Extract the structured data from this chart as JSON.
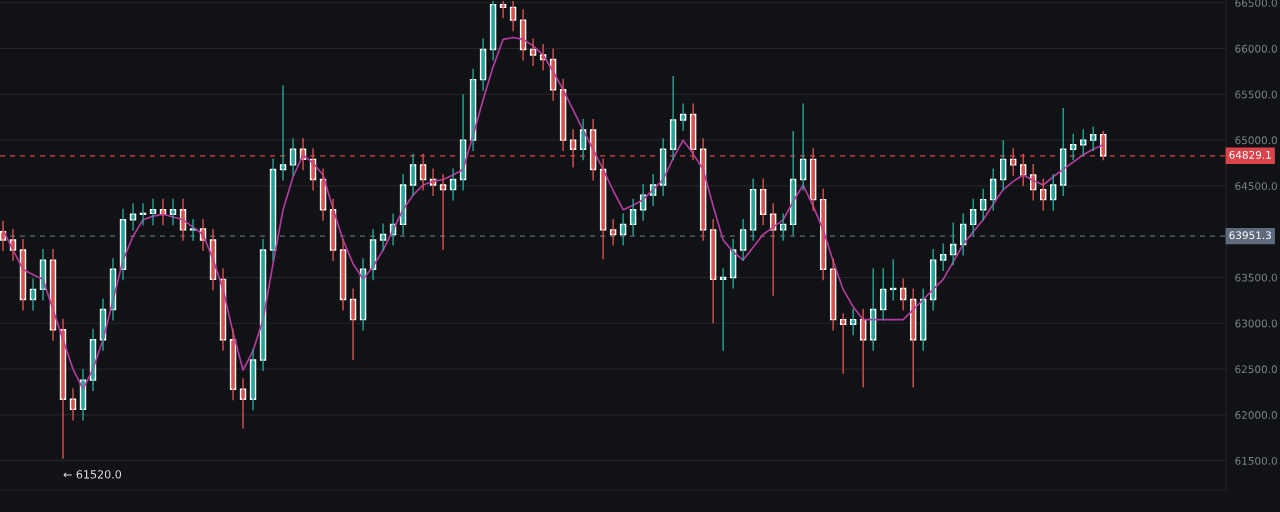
{
  "chart_data": {
    "type": "candlestick",
    "categories": [
      null,
      null,
      null,
      null,
      null,
      null,
      null,
      null,
      null,
      null,
      null,
      null,
      null,
      null,
      null,
      null,
      null,
      null,
      null,
      null,
      null,
      null,
      null,
      null,
      null,
      null,
      null,
      null,
      null,
      null,
      null,
      null,
      null,
      null,
      null,
      null,
      null,
      null,
      null,
      null,
      null,
      null,
      null,
      null,
      null,
      null,
      null,
      null,
      null,
      null,
      null,
      null,
      null,
      null,
      null,
      null,
      null,
      null,
      null,
      null,
      null,
      null,
      null,
      null,
      null,
      null,
      null,
      null,
      null,
      null,
      null,
      null,
      null,
      null,
      null,
      null,
      null,
      null,
      null,
      null,
      null,
      null,
      null,
      null,
      null,
      null,
      null,
      null,
      null,
      null,
      null,
      null,
      null,
      null,
      null,
      null,
      null,
      null,
      null,
      null,
      null,
      null,
      null,
      null,
      null,
      null,
      null,
      null,
      null,
      null,
      null
    ],
    "ohlc": [
      [
        64000,
        64120,
        63790,
        63910
      ],
      [
        63910,
        64030,
        63680,
        63800
      ],
      [
        63800,
        63920,
        63140,
        63260
      ],
      [
        63260,
        63490,
        63140,
        63370
      ],
      [
        63370,
        63810,
        63250,
        63690
      ],
      [
        63690,
        63810,
        62810,
        62930
      ],
      [
        62930,
        63050,
        61520,
        62170
      ],
      [
        62170,
        62290,
        61940,
        62060
      ],
      [
        62060,
        62500,
        61940,
        62380
      ],
      [
        62380,
        62940,
        62260,
        62820
      ],
      [
        62820,
        63270,
        62700,
        63150
      ],
      [
        63150,
        63710,
        63030,
        63590
      ],
      [
        63590,
        64250,
        63470,
        64130
      ],
      [
        64130,
        64310,
        64010,
        64190
      ],
      [
        64190,
        64310,
        64070,
        64200
      ],
      [
        64200,
        64360,
        64070,
        64240
      ],
      [
        64240,
        64360,
        64070,
        64190
      ],
      [
        64190,
        64360,
        64070,
        64240
      ],
      [
        64240,
        64360,
        63900,
        64020
      ],
      [
        64020,
        64140,
        63900,
        64030
      ],
      [
        64030,
        64140,
        63790,
        63910
      ],
      [
        63910,
        64030,
        63360,
        63480
      ],
      [
        63480,
        63600,
        62700,
        62820
      ],
      [
        62820,
        62940,
        62160,
        62280
      ],
      [
        62280,
        62400,
        61850,
        62170
      ],
      [
        62170,
        62720,
        62050,
        62600
      ],
      [
        62600,
        63920,
        62480,
        63800
      ],
      [
        63800,
        64800,
        63680,
        64680
      ],
      [
        64680,
        65600,
        64560,
        64730
      ],
      [
        64730,
        65020,
        64610,
        64900
      ],
      [
        64900,
        65020,
        64670,
        64790
      ],
      [
        64790,
        64910,
        64450,
        64570
      ],
      [
        64570,
        64690,
        64120,
        64240
      ],
      [
        64240,
        64360,
        63680,
        63800
      ],
      [
        63800,
        63920,
        63140,
        63260
      ],
      [
        63260,
        63380,
        62600,
        63040
      ],
      [
        63040,
        63710,
        62920,
        63590
      ],
      [
        63590,
        64030,
        63470,
        63910
      ],
      [
        63910,
        64090,
        63790,
        63970
      ],
      [
        63970,
        64200,
        63850,
        64080
      ],
      [
        64080,
        64630,
        63960,
        64510
      ],
      [
        64510,
        64850,
        64390,
        64730
      ],
      [
        64730,
        64850,
        64450,
        64570
      ],
      [
        64570,
        64690,
        64390,
        64510
      ],
      [
        64510,
        64630,
        63800,
        64460
      ],
      [
        64460,
        64690,
        64340,
        64570
      ],
      [
        64570,
        65500,
        64450,
        65000
      ],
      [
        65000,
        65780,
        64880,
        65660
      ],
      [
        65660,
        66110,
        65540,
        65990
      ],
      [
        65990,
        66520,
        65870,
        66480
      ],
      [
        66480,
        66520,
        66330,
        66450
      ],
      [
        66450,
        66520,
        66190,
        66310
      ],
      [
        66310,
        66430,
        65870,
        65990
      ],
      [
        65990,
        66110,
        65810,
        65930
      ],
      [
        65930,
        66050,
        65760,
        65880
      ],
      [
        65880,
        66000,
        65430,
        65550
      ],
      [
        65550,
        65670,
        64880,
        65000
      ],
      [
        65000,
        65120,
        64700,
        64900
      ],
      [
        64900,
        65230,
        64780,
        65110
      ],
      [
        65110,
        65230,
        64560,
        64680
      ],
      [
        64680,
        64800,
        63700,
        64020
      ],
      [
        64020,
        64140,
        63850,
        63970
      ],
      [
        63970,
        64200,
        63850,
        64080
      ],
      [
        64080,
        64360,
        63960,
        64240
      ],
      [
        64240,
        64520,
        64120,
        64400
      ],
      [
        64400,
        64630,
        64280,
        64510
      ],
      [
        64510,
        65020,
        64390,
        64900
      ],
      [
        64900,
        65700,
        64780,
        65220
      ],
      [
        65220,
        65400,
        65100,
        65280
      ],
      [
        65280,
        65400,
        64780,
        64900
      ],
      [
        64900,
        65020,
        63900,
        64020
      ],
      [
        64020,
        64140,
        63000,
        63480
      ],
      [
        63480,
        63600,
        62700,
        63500
      ],
      [
        63500,
        63920,
        63380,
        63800
      ],
      [
        63800,
        64140,
        63680,
        64020
      ],
      [
        64020,
        64580,
        63900,
        64460
      ],
      [
        64460,
        64580,
        64070,
        64190
      ],
      [
        64190,
        64310,
        63300,
        64020
      ],
      [
        64020,
        64200,
        63900,
        64080
      ],
      [
        64080,
        65100,
        63960,
        64570
      ],
      [
        64570,
        65400,
        64450,
        64790
      ],
      [
        64790,
        64910,
        64230,
        64350
      ],
      [
        64350,
        64470,
        63470,
        63590
      ],
      [
        63590,
        63710,
        62920,
        63040
      ],
      [
        63040,
        63110,
        62450,
        62990
      ],
      [
        62990,
        63160,
        62870,
        63040
      ],
      [
        63040,
        63160,
        62300,
        62820
      ],
      [
        62820,
        63600,
        62700,
        63150
      ],
      [
        63150,
        63600,
        63030,
        63370
      ],
      [
        63370,
        63700,
        63250,
        63380
      ],
      [
        63380,
        63490,
        63140,
        63260
      ],
      [
        63260,
        63380,
        62300,
        62820
      ],
      [
        62820,
        63380,
        62700,
        63260
      ],
      [
        63260,
        63810,
        63140,
        63690
      ],
      [
        63690,
        63870,
        63570,
        63750
      ],
      [
        63750,
        64100,
        63630,
        63860
      ],
      [
        63860,
        64200,
        63740,
        64080
      ],
      [
        64080,
        64360,
        63960,
        64240
      ],
      [
        64240,
        64470,
        64120,
        64350
      ],
      [
        64350,
        64690,
        64230,
        64570
      ],
      [
        64570,
        65000,
        64450,
        64790
      ],
      [
        64790,
        64910,
        64610,
        64730
      ],
      [
        64730,
        64850,
        64500,
        64620
      ],
      [
        64620,
        64740,
        64340,
        64460
      ],
      [
        64460,
        64580,
        64230,
        64350
      ],
      [
        64350,
        64630,
        64230,
        64510
      ],
      [
        64510,
        65350,
        64390,
        64900
      ],
      [
        64900,
        65070,
        64780,
        64950
      ],
      [
        64950,
        65120,
        64830,
        65000
      ],
      [
        65000,
        65150,
        64880,
        65060
      ],
      [
        65060,
        65100,
        64780,
        64829.1
      ]
    ],
    "colors": [
      "#d9534f",
      "#d9534f",
      "#d9534f",
      "#26a69a",
      "#26a69a",
      "#d9534f",
      "#d9534f",
      "#d9534f",
      "#26a69a",
      "#26a69a",
      "#26a69a",
      "#26a69a",
      "#26a69a",
      "#26a69a",
      "#26a69a",
      "#26a69a",
      "#d9534f",
      "#26a69a",
      "#d9534f",
      "#26a69a",
      "#d9534f",
      "#d9534f",
      "#d9534f",
      "#d9534f",
      "#d9534f",
      "#26a69a",
      "#26a69a",
      "#26a69a",
      "#26a69a",
      "#26a69a",
      "#d9534f",
      "#d9534f",
      "#d9534f",
      "#d9534f",
      "#d9534f",
      "#d9534f",
      "#26a69a",
      "#26a69a",
      "#26a69a",
      "#26a69a",
      "#26a69a",
      "#26a69a",
      "#d9534f",
      "#d9534f",
      "#d9534f",
      "#26a69a",
      "#26a69a",
      "#26a69a",
      "#26a69a",
      "#26a69a",
      "#d9534f",
      "#d9534f",
      "#d9534f",
      "#d9534f",
      "#d9534f",
      "#d9534f",
      "#d9534f",
      "#d9534f",
      "#26a69a",
      "#d9534f",
      "#d9534f",
      "#d9534f",
      "#26a69a",
      "#26a69a",
      "#26a69a",
      "#26a69a",
      "#26a69a",
      "#26a69a",
      "#26a69a",
      "#d9534f",
      "#d9534f",
      "#d9534f",
      "#26a69a",
      "#26a69a",
      "#26a69a",
      "#26a69a",
      "#d9534f",
      "#d9534f",
      "#26a69a",
      "#26a69a",
      "#26a69a",
      "#d9534f",
      "#d9534f",
      "#d9534f",
      "#d9534f",
      "#26a69a",
      "#d9534f",
      "#26a69a",
      "#26a69a",
      "#26a69a",
      "#d9534f",
      "#d9534f",
      "#26a69a",
      "#26a69a",
      "#26a69a",
      "#26a69a",
      "#26a69a",
      "#26a69a",
      "#26a69a",
      "#26a69a",
      "#26a69a",
      "#d9534f",
      "#d9534f",
      "#d9534f",
      "#d9534f",
      "#26a69a",
      "#26a69a",
      "#26a69a",
      "#26a69a",
      "#26a69a",
      "#d9534f"
    ],
    "series": [
      {
        "type": "line",
        "color": "#b33aa0",
        "values": [
          64020,
          63800,
          63590,
          63530,
          63480,
          63150,
          62820,
          62500,
          62280,
          62500,
          62820,
          63250,
          63690,
          63950,
          64130,
          64170,
          64190,
          64160,
          64130,
          64050,
          63970,
          63700,
          63370,
          62900,
          62490,
          62700,
          63040,
          63650,
          64240,
          64600,
          64840,
          64750,
          64620,
          64250,
          63910,
          63650,
          63480,
          63620,
          63800,
          64020,
          64240,
          64400,
          64510,
          64550,
          64570,
          64620,
          64680,
          65050,
          65440,
          65800,
          66100,
          66120,
          66100,
          66030,
          65930,
          65750,
          65550,
          65330,
          65110,
          64900,
          64680,
          64450,
          64240,
          64290,
          64350,
          64460,
          64570,
          64800,
          65000,
          64850,
          64680,
          64280,
          63910,
          63780,
          63690,
          63830,
          63970,
          64050,
          64130,
          64330,
          64510,
          64280,
          64020,
          63680,
          63370,
          63180,
          63040,
          63040,
          63040,
          63040,
          63040,
          63150,
          63260,
          63370,
          63480,
          63670,
          63860,
          64000,
          64130,
          64300,
          64460,
          64550,
          64620,
          64560,
          64510,
          64600,
          64680,
          64760,
          64840,
          64900,
          64950
        ]
      }
    ],
    "ylim": [
      61180,
      66530
    ],
    "yticks": [
      {
        "value": 61500,
        "label": "61500.0"
      },
      {
        "value": 62000,
        "label": "62000.0"
      },
      {
        "value": 62500,
        "label": "62500.0"
      },
      {
        "value": 63000,
        "label": "63000.0"
      },
      {
        "value": 63500,
        "label": "63500.0"
      },
      {
        "value": 64500,
        "label": "64500.0"
      },
      {
        "value": 65000,
        "label": "65000.0"
      },
      {
        "value": 65500,
        "label": "65500.0"
      },
      {
        "value": 66000,
        "label": "66000.0"
      },
      {
        "value": 66500,
        "label": "66500.0"
      }
    ],
    "ref_lines": [
      {
        "axis": "y",
        "value": 64829.1,
        "label": "64829.1",
        "color": "#d9434a",
        "line_style": "dashed"
      },
      {
        "axis": "y",
        "value": 63951.3,
        "label": "63951.3",
        "color": "#5d6b7c",
        "line_style": "dashed"
      }
    ],
    "annotations": [
      "← 61520.0"
    ],
    "grid": "y",
    "tick_labels": "y",
    "legend": false
  }
}
